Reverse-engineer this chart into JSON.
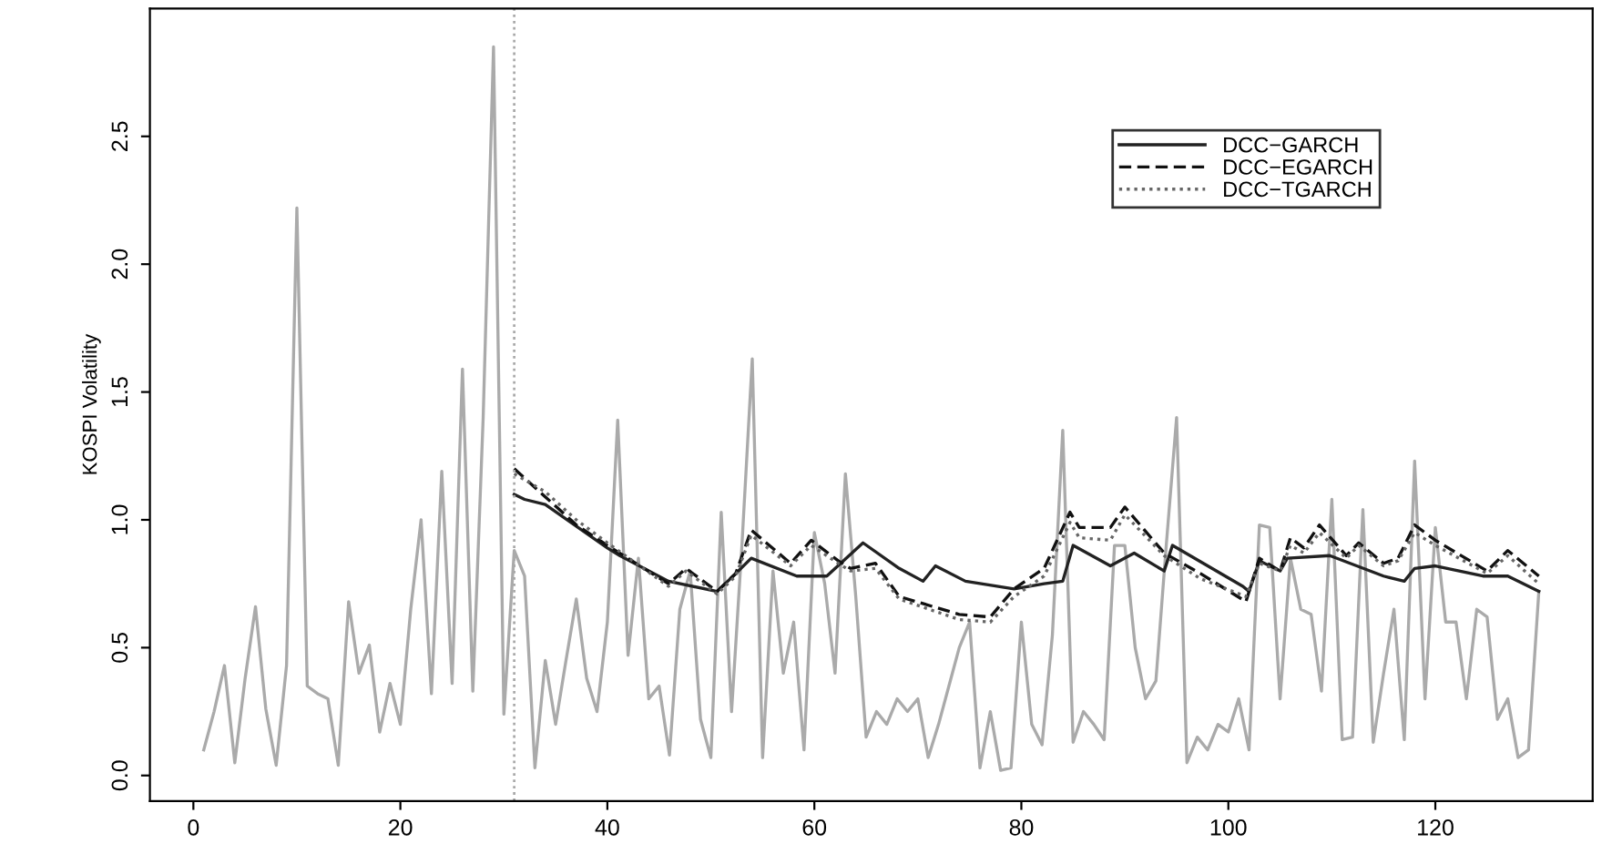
{
  "chart_data": {
    "type": "line",
    "ylabel": "KOSPI Volatility",
    "xlim": [
      -4.2,
      135.2
    ],
    "ylim": [
      -0.1,
      3.0
    ],
    "xticks": [
      0,
      20,
      40,
      60,
      80,
      100,
      120
    ],
    "yticks": [
      {
        "value": 0,
        "label": "0.0"
      },
      {
        "value": 0.5,
        "label": "0.5"
      },
      {
        "value": 1,
        "label": "1.0"
      },
      {
        "value": 1.5,
        "label": "1.5"
      },
      {
        "value": 2,
        "label": "2.0"
      },
      {
        "value": 2.5,
        "label": "2.5"
      }
    ],
    "grid": false,
    "legend": "top right",
    "marker": "none",
    "ref_lines": [
      {
        "axis": "x",
        "value": 31,
        "color": "#aaaaaa",
        "line_style": "dotted"
      }
    ],
    "series": [
      {
        "color": "#aaaaaa",
        "line_style": "solid",
        "x": [
          1,
          2,
          3,
          4,
          5,
          6,
          7,
          8,
          9,
          10,
          11,
          12,
          13,
          14,
          15,
          16,
          17,
          18,
          19,
          20,
          21,
          22,
          23,
          24,
          25,
          26,
          27,
          28,
          29,
          30,
          31,
          32,
          33,
          34,
          35,
          36,
          37,
          38,
          39,
          40,
          41,
          42,
          43,
          44,
          45,
          46,
          47,
          48,
          49,
          50,
          51,
          52,
          53,
          54,
          55,
          56,
          57,
          58,
          59,
          60,
          61,
          62,
          63,
          64,
          65,
          66,
          67,
          68,
          69,
          70,
          71,
          72,
          73,
          74,
          75,
          76,
          77,
          78,
          79,
          80,
          81,
          82,
          83,
          84,
          85,
          86,
          87,
          88,
          89,
          90,
          91,
          92,
          93,
          94,
          95,
          96,
          97,
          98,
          99,
          100,
          101,
          102,
          103,
          104,
          105,
          106,
          107,
          108,
          109,
          110,
          111,
          112,
          113,
          114,
          115,
          116,
          117,
          118,
          119,
          120,
          121,
          122,
          123,
          124,
          125,
          126,
          127,
          128,
          129,
          130
        ],
        "values": [
          0.1,
          0.25,
          0.43,
          0.05,
          0.38,
          0.66,
          0.26,
          0.04,
          0.43,
          2.22,
          0.35,
          0.32,
          0.3,
          0.04,
          0.68,
          0.4,
          0.51,
          0.17,
          0.36,
          0.2,
          0.65,
          1.0,
          0.32,
          1.19,
          0.36,
          1.59,
          0.33,
          1.4,
          2.85,
          0.24,
          0.88,
          0.78,
          0.03,
          0.45,
          0.2,
          0.45,
          0.69,
          0.38,
          0.25,
          0.6,
          1.39,
          0.47,
          0.85,
          0.3,
          0.35,
          0.08,
          0.65,
          0.8,
          0.22,
          0.07,
          1.03,
          0.25,
          0.9,
          1.63,
          0.07,
          0.8,
          0.4,
          0.6,
          0.1,
          0.95,
          0.75,
          0.4,
          1.18,
          0.7,
          0.15,
          0.25,
          0.2,
          0.3,
          0.25,
          0.3,
          0.07,
          0.2,
          0.35,
          0.5,
          0.6,
          0.03,
          0.25,
          0.02,
          0.03,
          0.6,
          0.2,
          0.12,
          0.55,
          1.35,
          0.13,
          0.25,
          0.2,
          0.14,
          0.9,
          0.9,
          0.5,
          0.3,
          0.37,
          0.9,
          1.4,
          0.05,
          0.15,
          0.1,
          0.2,
          0.17,
          0.3,
          0.1,
          0.98,
          0.97,
          0.3,
          0.85,
          0.65,
          0.63,
          0.33,
          1.08,
          0.14,
          0.15,
          1.04,
          0.13,
          0.4,
          0.65,
          0.14,
          1.23,
          0.3,
          0.97,
          0.6,
          0.6,
          0.3,
          0.65,
          0.62,
          0.22,
          0.3,
          0.07,
          0.1,
          0.72
        ]
      },
      {
        "name": "DCC−GARCH",
        "color": "#222222",
        "line_style": "solid",
        "x": [
          31,
          32,
          34,
          40,
          41.2,
          45.9,
          50.6,
          52.4,
          53.9,
          58.3,
          61.2,
          64.7,
          68.2,
          70.5,
          71.7,
          74.6,
          79.3,
          82.2,
          84,
          85,
          88.6,
          90.9,
          93.8,
          94.6,
          101.4,
          102,
          103,
          105,
          105.7,
          109.8,
          115,
          117,
          118,
          120,
          124.6,
          127,
          130
        ],
        "values": [
          1.1,
          1.08,
          1.06,
          0.89,
          0.86,
          0.76,
          0.72,
          0.79,
          0.85,
          0.78,
          0.78,
          0.91,
          0.81,
          0.76,
          0.82,
          0.76,
          0.73,
          0.75,
          0.76,
          0.9,
          0.82,
          0.87,
          0.8,
          0.9,
          0.74,
          0.72,
          0.84,
          0.8,
          0.85,
          0.86,
          0.78,
          0.76,
          0.81,
          0.82,
          0.78,
          0.78,
          0.72
        ]
      },
      {
        "name": "DCC−EGARCH",
        "color": "#111111",
        "line_style": "dashed",
        "x": [
          31,
          34,
          37,
          40,
          45.9,
          47.6,
          50.6,
          52.4,
          53.9,
          57.7,
          59.7,
          62.3,
          63.5,
          65.9,
          68.2,
          74,
          77,
          79.3,
          82.2,
          84.7,
          85.6,
          88.6,
          90,
          93.8,
          97.3,
          101.7,
          103,
          105,
          106,
          107.3,
          108.8,
          111.4,
          112.6,
          115,
          116.4,
          118,
          120,
          125,
          127,
          130
        ],
        "values": [
          1.2,
          1.09,
          0.98,
          0.9,
          0.75,
          0.81,
          0.72,
          0.79,
          0.96,
          0.83,
          0.92,
          0.84,
          0.81,
          0.83,
          0.7,
          0.63,
          0.62,
          0.73,
          0.81,
          1.03,
          0.97,
          0.97,
          1.05,
          0.87,
          0.79,
          0.68,
          0.85,
          0.8,
          0.93,
          0.89,
          0.98,
          0.86,
          0.91,
          0.83,
          0.85,
          0.98,
          0.92,
          0.8,
          0.88,
          0.78
        ]
      },
      {
        "name": "DCC−TGARCH",
        "color": "#666666",
        "line_style": "dotted",
        "x": [
          31,
          34,
          37,
          40,
          45.9,
          47.6,
          50.6,
          52.4,
          53.9,
          57.7,
          59.7,
          62.3,
          63.5,
          65.9,
          68.2,
          74,
          77,
          79.3,
          82.2,
          84.7,
          85.6,
          88.6,
          90,
          93.8,
          97.3,
          101.7,
          103,
          105,
          106,
          107.3,
          108.8,
          111.4,
          112.6,
          115,
          116.4,
          118,
          120,
          125,
          127,
          130
        ],
        "values": [
          1.18,
          1.11,
          1.0,
          0.91,
          0.74,
          0.8,
          0.71,
          0.78,
          0.94,
          0.82,
          0.9,
          0.83,
          0.8,
          0.81,
          0.69,
          0.61,
          0.6,
          0.7,
          0.78,
          0.99,
          0.93,
          0.92,
          1.02,
          0.86,
          0.77,
          0.7,
          0.83,
          0.8,
          0.9,
          0.87,
          0.95,
          0.85,
          0.9,
          0.82,
          0.84,
          0.95,
          0.9,
          0.79,
          0.86,
          0.75
        ]
      }
    ]
  }
}
